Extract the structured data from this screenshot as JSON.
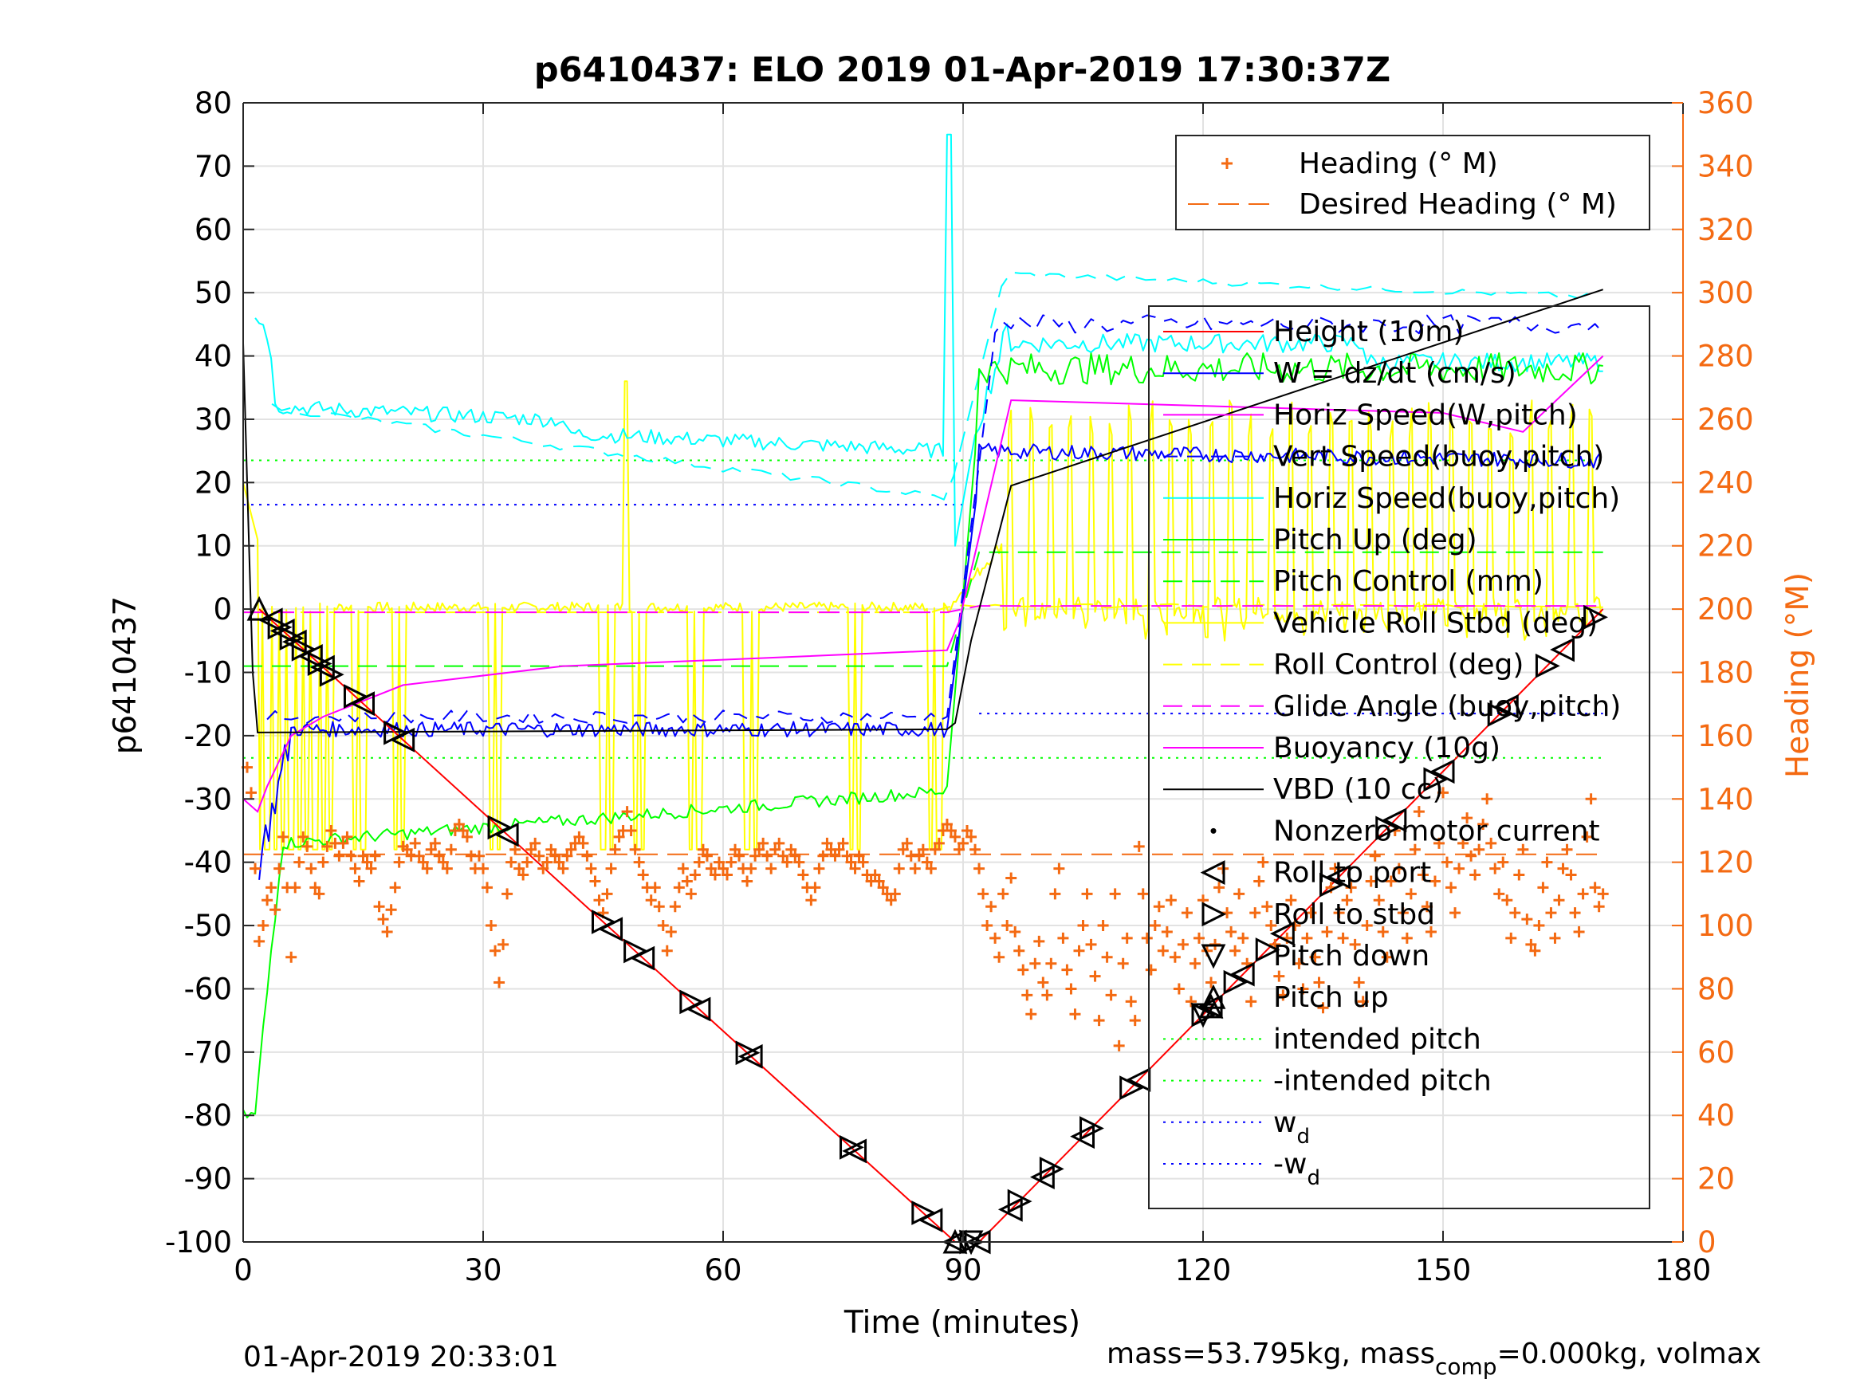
{
  "chart_data": {
    "type": "line",
    "title": "p6410437: ELO 2019 01-Apr-2019 17:30:37Z",
    "xlabel": "Time (minutes)",
    "ylabel": "p6410437",
    "ylabel_right": "Heading (°M)",
    "xlim": [
      0,
      180
    ],
    "ylim": [
      -100,
      80
    ],
    "ylim_right": [
      0,
      360
    ],
    "xticks": [
      "0",
      "30",
      "60",
      "90",
      "120",
      "150",
      "180"
    ],
    "yticks": [
      "80",
      "70",
      "60",
      "50",
      "40",
      "30",
      "20",
      "10",
      "0",
      "-10",
      "-20",
      "-30",
      "-40",
      "-50",
      "-60",
      "-70",
      "-80",
      "-90",
      "-100"
    ],
    "yticks_right": [
      "360",
      "340",
      "320",
      "300",
      "280",
      "260",
      "240",
      "220",
      "200",
      "180",
      "160",
      "140",
      "120",
      "100",
      "80",
      "60",
      "40",
      "20",
      "0"
    ],
    "grid": true,
    "footer_left": "01-Apr-2019 20:33:01",
    "footer_right": "mass=53.795kg, mass",
    "footer_right_sub": "comp",
    "footer_right_tail": "=0.000kg, volmax",
    "legend_heading": {
      "position": "top-right",
      "entries": [
        "Heading (° M)",
        "Desired Heading (° M)"
      ]
    },
    "legend_main": {
      "position": "right",
      "entries": [
        "Height (10m)",
        "W = dz/dt (cm/s)",
        "Horiz Speed(W,pitch)",
        "Vert Speed(buoy,pitch)",
        "Horiz Speed(buoy,pitch)",
        "Pitch Up (deg)",
        "Pitch Control (mm)",
        "Vehicle Roll Stbd (deg)",
        "Roll Control (deg)",
        "Glide Angle (buoy,pitch)",
        "Buoyancy (10g)",
        "VBD (10 cc)",
        "Nonzero motor current",
        "Roll to port",
        "Roll to stbd",
        "Pitch down",
        "Pitch up",
        "intended pitch",
        "-intended pitch",
        "w",
        "-w"
      ],
      "w_sub": "d"
    },
    "colors": {
      "height": "#ff0000",
      "w": "#0000ff",
      "cyan": "#00ffff",
      "green": "#00ff00",
      "yellow": "#ffff00",
      "magenta": "#ff00ff",
      "vbd": "#000000",
      "heading": "#f46a12"
    },
    "series": [
      {
        "name": "Height (10m)",
        "x": [
          2,
          89,
          92,
          170
        ],
        "y": [
          0,
          -100,
          -100,
          0
        ]
      },
      {
        "name": "VBD (10 cc)",
        "x": [
          0,
          0.5,
          1.2,
          1.8,
          88,
          89,
          91,
          96,
          170
        ],
        "y": [
          42,
          20,
          -10,
          -19.5,
          -19,
          -18,
          -5,
          19.5,
          50.5
        ]
      },
      {
        "name": "Buoyancy (10g)",
        "x": [
          0,
          1.8,
          3,
          6,
          10,
          20,
          40,
          60,
          88,
          89.5,
          96,
          150,
          160,
          170
        ],
        "y": [
          -30,
          -32,
          -28,
          -20,
          -17,
          -12,
          -9,
          -8,
          -6.5,
          -2,
          33,
          31,
          28,
          40
        ]
      },
      {
        "name": "Glide Angle (buoy,pitch)",
        "x": [
          0,
          88,
          92,
          170
        ],
        "y": [
          -0.5,
          -0.5,
          0.5,
          0.5
        ]
      },
      {
        "name": "Pitch Control (mm)",
        "x": [
          0,
          88,
          92,
          170
        ],
        "y": [
          -9,
          -9,
          9,
          9
        ]
      },
      {
        "name": "Desired Heading (° M)",
        "x": [
          0,
          170
        ],
        "y": [
          122.5,
          122.5
        ]
      },
      {
        "name": "intended pitch",
        "x": [
          0,
          170
        ],
        "y": [
          23.5,
          23.5
        ]
      },
      {
        "name": "-intended pitch",
        "x": [
          0,
          170
        ],
        "y": [
          -23.5,
          -23.5
        ]
      },
      {
        "name": "w",
        "x": [
          0,
          90
        ],
        "y": [
          16.5,
          16.5
        ]
      },
      {
        "name": "-w",
        "x": [
          92,
          170
        ],
        "y": [
          -16.5,
          -16.5
        ]
      }
    ],
    "markers": {
      "roll_to_port_x": [
        3.5,
        5,
        6.5,
        8.5,
        10,
        15,
        20,
        33,
        46,
        50,
        57,
        63.5,
        76.5,
        86,
        89,
        92,
        96,
        100,
        105,
        112,
        121,
        125,
        130,
        137,
        144,
        150,
        158,
        165
      ],
      "roll_to_stbd_x": [
        4.5,
        6,
        7.5,
        9.5,
        11,
        14,
        19,
        32,
        45,
        49,
        56,
        63,
        76,
        85,
        91,
        97,
        101,
        106,
        111,
        120,
        124,
        128,
        136,
        143,
        149,
        157,
        163,
        169
      ],
      "pitch_up_x": [
        2,
        89,
        121
      ],
      "pitch_down_x": [
        91,
        120
      ]
    },
    "heading_points": [
      [
        0.5,
        150
      ],
      [
        1,
        142
      ],
      [
        1.5,
        118
      ],
      [
        2,
        95
      ],
      [
        2.5,
        100
      ],
      [
        3,
        108
      ],
      [
        3.5,
        112
      ],
      [
        4,
        105
      ],
      [
        4.5,
        118
      ],
      [
        5,
        128
      ],
      [
        5.5,
        112
      ],
      [
        6,
        90
      ],
      [
        6.5,
        112
      ],
      [
        7,
        120
      ],
      [
        7.5,
        128
      ],
      [
        8,
        125
      ],
      [
        8.5,
        118
      ],
      [
        9,
        112
      ],
      [
        9.5,
        110
      ],
      [
        10,
        120
      ],
      [
        10.5,
        125
      ],
      [
        11,
        130
      ],
      [
        11.5,
        126
      ],
      [
        12,
        122
      ],
      [
        12.5,
        126
      ],
      [
        13,
        128
      ],
      [
        13.5,
        122
      ],
      [
        14,
        118
      ],
      [
        14.5,
        114
      ],
      [
        15,
        122
      ],
      [
        15.5,
        120
      ],
      [
        16,
        118
      ],
      [
        16.5,
        122
      ],
      [
        17,
        106
      ],
      [
        17.5,
        102
      ],
      [
        18,
        98
      ],
      [
        18.5,
        105
      ],
      [
        19,
        112
      ],
      [
        19.5,
        120
      ],
      [
        20,
        125
      ],
      [
        20.5,
        124
      ],
      [
        21,
        122
      ],
      [
        21.5,
        126
      ],
      [
        22,
        122
      ],
      [
        22.5,
        120
      ],
      [
        23,
        118
      ],
      [
        23.5,
        124
      ],
      [
        24,
        126
      ],
      [
        24.5,
        122
      ],
      [
        25,
        120
      ],
      [
        25.5,
        118
      ],
      [
        26,
        124
      ],
      [
        26.5,
        130
      ],
      [
        27,
        132
      ],
      [
        27.5,
        130
      ],
      [
        28,
        128
      ],
      [
        28.5,
        122
      ],
      [
        29,
        118
      ],
      [
        29.5,
        122
      ],
      [
        30,
        118
      ],
      [
        30.5,
        112
      ],
      [
        31,
        100
      ],
      [
        31.5,
        92
      ],
      [
        32,
        82
      ],
      [
        32.5,
        94
      ],
      [
        33,
        110
      ],
      [
        33.5,
        120
      ],
      [
        34,
        124
      ],
      [
        34.5,
        118
      ],
      [
        35,
        116
      ],
      [
        35.5,
        120
      ],
      [
        36,
        124
      ],
      [
        36.5,
        126
      ],
      [
        37,
        122
      ],
      [
        37.5,
        118
      ],
      [
        38,
        120
      ],
      [
        38.5,
        124
      ],
      [
        39,
        122
      ],
      [
        39.5,
        120
      ],
      [
        40,
        118
      ],
      [
        40.5,
        122
      ],
      [
        41,
        124
      ],
      [
        41.5,
        126
      ],
      [
        42,
        128
      ],
      [
        42.5,
        126
      ],
      [
        43,
        122
      ],
      [
        43.5,
        118
      ],
      [
        44,
        114
      ],
      [
        44.5,
        108
      ],
      [
        45,
        104
      ],
      [
        45.5,
        110
      ],
      [
        46,
        118
      ],
      [
        46.5,
        124
      ],
      [
        47,
        128
      ],
      [
        47.5,
        130
      ],
      [
        48,
        136
      ],
      [
        48.5,
        130
      ],
      [
        49,
        124
      ],
      [
        49.5,
        120
      ],
      [
        50,
        116
      ],
      [
        50.5,
        112
      ],
      [
        51,
        108
      ],
      [
        51.5,
        112
      ],
      [
        52,
        106
      ],
      [
        52.5,
        100
      ],
      [
        53,
        92
      ],
      [
        53.5,
        98
      ],
      [
        54,
        106
      ],
      [
        54.5,
        112
      ],
      [
        55,
        118
      ],
      [
        55.5,
        114
      ],
      [
        56,
        110
      ],
      [
        56.5,
        116
      ],
      [
        57,
        120
      ],
      [
        57.5,
        124
      ],
      [
        58,
        122
      ],
      [
        58.5,
        118
      ],
      [
        59,
        116
      ],
      [
        59.5,
        120
      ],
      [
        60,
        118
      ],
      [
        60.5,
        116
      ],
      [
        61,
        120
      ],
      [
        61.5,
        124
      ],
      [
        62,
        122
      ],
      [
        62.5,
        118
      ],
      [
        63,
        114
      ],
      [
        63.5,
        118
      ],
      [
        64,
        122
      ],
      [
        64.5,
        124
      ],
      [
        65,
        126
      ],
      [
        65.5,
        122
      ],
      [
        66,
        118
      ],
      [
        66.5,
        124
      ],
      [
        67,
        126
      ],
      [
        67.5,
        122
      ],
      [
        68,
        120
      ],
      [
        68.5,
        124
      ],
      [
        69,
        122
      ],
      [
        69.5,
        120
      ],
      [
        70,
        116
      ],
      [
        70.5,
        112
      ],
      [
        71,
        108
      ],
      [
        71.5,
        112
      ],
      [
        72,
        118
      ],
      [
        72.5,
        122
      ],
      [
        73,
        126
      ],
      [
        73.5,
        124
      ],
      [
        74,
        122
      ],
      [
        74.5,
        124
      ],
      [
        75,
        126
      ],
      [
        75.5,
        122
      ],
      [
        76,
        120
      ],
      [
        76.5,
        118
      ],
      [
        77,
        122
      ],
      [
        77.5,
        120
      ],
      [
        78,
        116
      ],
      [
        78.5,
        114
      ],
      [
        79,
        116
      ],
      [
        79.5,
        114
      ],
      [
        80,
        112
      ],
      [
        80.5,
        110
      ],
      [
        81,
        108
      ],
      [
        81.5,
        110
      ],
      [
        82,
        118
      ],
      [
        82.5,
        124
      ],
      [
        83,
        126
      ],
      [
        83.5,
        122
      ],
      [
        84,
        118
      ],
      [
        84.5,
        122
      ],
      [
        85,
        124
      ],
      [
        85.5,
        120
      ],
      [
        86,
        118
      ],
      [
        86.5,
        124
      ],
      [
        87,
        126
      ],
      [
        87.5,
        130
      ],
      [
        88,
        132
      ],
      [
        88.5,
        130
      ],
      [
        89,
        128
      ],
      [
        89.5,
        124
      ],
      [
        90,
        126
      ],
      [
        90.5,
        130
      ],
      [
        91,
        128
      ],
      [
        91.5,
        124
      ],
      [
        92,
        118
      ],
      [
        92.5,
        110
      ],
      [
        93,
        100
      ],
      [
        93.5,
        106
      ],
      [
        94,
        96
      ],
      [
        94.5,
        90
      ],
      [
        95,
        110
      ],
      [
        95.5,
        100
      ],
      [
        96,
        115
      ],
      [
        96.5,
        98
      ],
      [
        97,
        92
      ],
      [
        97.5,
        86
      ],
      [
        98,
        78
      ],
      [
        98.5,
        72
      ],
      [
        99,
        88
      ],
      [
        99.5,
        95
      ],
      [
        100,
        82
      ],
      [
        100.5,
        78
      ],
      [
        101,
        88
      ],
      [
        101.5,
        110
      ],
      [
        102,
        118
      ],
      [
        102.5,
        96
      ],
      [
        103,
        86
      ],
      [
        103.5,
        80
      ],
      [
        104,
        72
      ],
      [
        104.5,
        92
      ],
      [
        105,
        100
      ],
      [
        105.5,
        110
      ],
      [
        106,
        94
      ],
      [
        106.5,
        84
      ],
      [
        107,
        70
      ],
      [
        107.5,
        100
      ],
      [
        108,
        90
      ],
      [
        108.5,
        78
      ],
      [
        109,
        110
      ],
      [
        109.5,
        62
      ],
      [
        110,
        88
      ],
      [
        110.5,
        96
      ],
      [
        111,
        76
      ],
      [
        111.5,
        70
      ],
      [
        112,
        125
      ],
      [
        112.5,
        110
      ],
      [
        113,
        96
      ],
      [
        113.5,
        86
      ],
      [
        114,
        100
      ],
      [
        114.5,
        106
      ],
      [
        115,
        92
      ],
      [
        115.5,
        98
      ],
      [
        116,
        108
      ],
      [
        116.5,
        90
      ],
      [
        117,
        80
      ],
      [
        117.5,
        94
      ],
      [
        118,
        104
      ],
      [
        118.5,
        76
      ],
      [
        119,
        88
      ],
      [
        119.5,
        96
      ],
      [
        120,
        108
      ],
      [
        120.5,
        92
      ],
      [
        121,
        82
      ],
      [
        121.5,
        94
      ],
      [
        122,
        112
      ],
      [
        122.5,
        118
      ],
      [
        123,
        104
      ],
      [
        123.5,
        98
      ],
      [
        124,
        92
      ],
      [
        124.5,
        110
      ],
      [
        125,
        96
      ],
      [
        125.5,
        88
      ],
      [
        126,
        76
      ],
      [
        126.5,
        104
      ],
      [
        127,
        114
      ],
      [
        127.5,
        120
      ],
      [
        128,
        106
      ],
      [
        128.5,
        100
      ],
      [
        129,
        94
      ],
      [
        129.5,
        84
      ],
      [
        130,
        78
      ],
      [
        130.5,
        96
      ],
      [
        131,
        108
      ],
      [
        131.5,
        100
      ],
      [
        132,
        88
      ],
      [
        132.5,
        80
      ],
      [
        133,
        96
      ],
      [
        133.5,
        104
      ],
      [
        134,
        90
      ],
      [
        134.5,
        82
      ],
      [
        135,
        74
      ],
      [
        135.5,
        98
      ],
      [
        136,
        112
      ],
      [
        136.5,
        118
      ],
      [
        137,
        104
      ],
      [
        137.5,
        96
      ],
      [
        138,
        108
      ],
      [
        138.5,
        112
      ],
      [
        139,
        94
      ],
      [
        139.5,
        82
      ],
      [
        140,
        76
      ],
      [
        140.5,
        100
      ],
      [
        141,
        114
      ],
      [
        141.5,
        122
      ],
      [
        142,
        108
      ],
      [
        142.5,
        98
      ],
      [
        143,
        90
      ],
      [
        143.5,
        114
      ],
      [
        144,
        130
      ],
      [
        144.5,
        118
      ],
      [
        145,
        104
      ],
      [
        145.5,
        96
      ],
      [
        146,
        110
      ],
      [
        146.5,
        124
      ],
      [
        147,
        136
      ],
      [
        147.5,
        116
      ],
      [
        148,
        106
      ],
      [
        148.5,
        98
      ],
      [
        149,
        114
      ],
      [
        149.5,
        126
      ],
      [
        150,
        142
      ],
      [
        150.5,
        120
      ],
      [
        151,
        112
      ],
      [
        151.5,
        104
      ],
      [
        152,
        118
      ],
      [
        152.5,
        126
      ],
      [
        153,
        134
      ],
      [
        153.5,
        122
      ],
      [
        154,
        116
      ],
      [
        154.5,
        124
      ],
      [
        155,
        132
      ],
      [
        155.5,
        140
      ],
      [
        156,
        126
      ],
      [
        156.5,
        118
      ],
      [
        157,
        110
      ],
      [
        157.5,
        120
      ],
      [
        158,
        108
      ],
      [
        158.5,
        96
      ],
      [
        159,
        104
      ],
      [
        159.5,
        116
      ],
      [
        160,
        124
      ],
      [
        160.5,
        102
      ],
      [
        161,
        94
      ],
      [
        161.5,
        92
      ],
      [
        162,
        100
      ],
      [
        162.5,
        112
      ],
      [
        163,
        120
      ],
      [
        163.5,
        104
      ],
      [
        164,
        96
      ],
      [
        164.5,
        108
      ],
      [
        165,
        118
      ],
      [
        165.5,
        124
      ],
      [
        166,
        116
      ],
      [
        166.5,
        104
      ],
      [
        167,
        98
      ],
      [
        167.5,
        110
      ],
      [
        168,
        128
      ],
      [
        168.5,
        140
      ],
      [
        169,
        112
      ],
      [
        169.5,
        106
      ],
      [
        170,
        110
      ]
    ]
  }
}
